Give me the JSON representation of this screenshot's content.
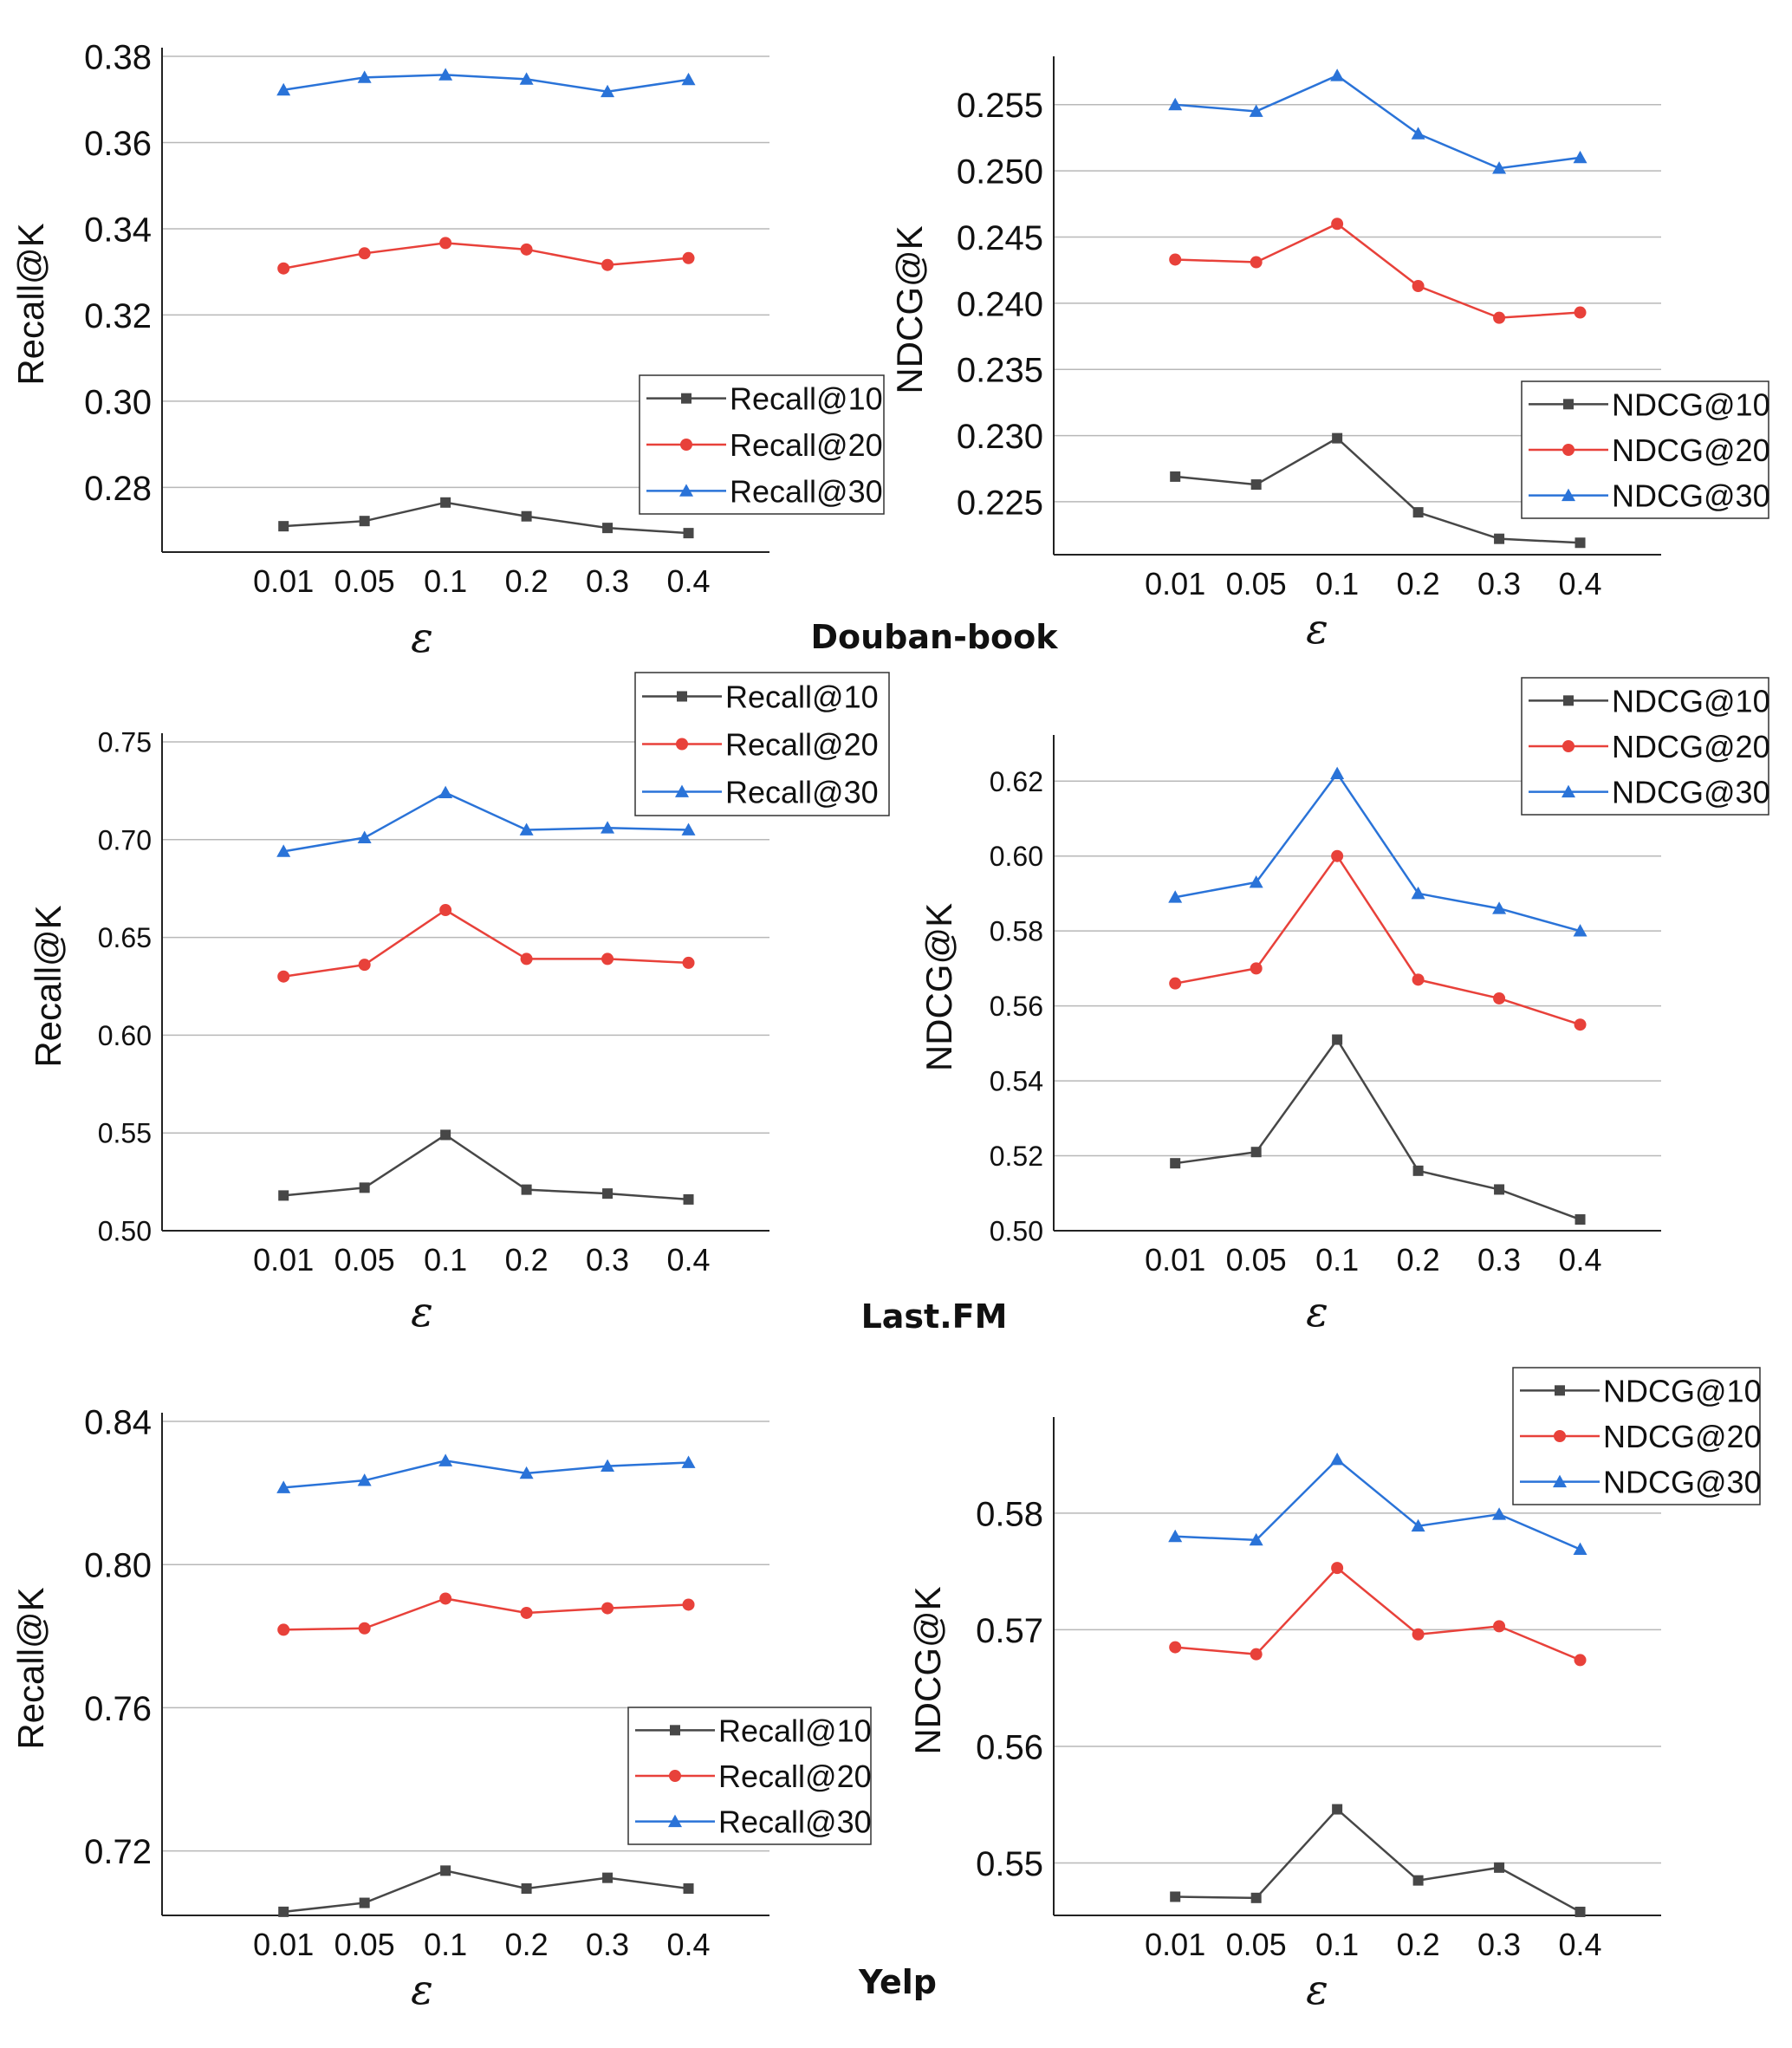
{
  "datasets": [
    "Douban-book",
    "Last.FM",
    "Yelp"
  ],
  "colors": {
    "series10": "#474747",
    "series20": "#e8413a",
    "series30": "#2a73d8",
    "grid": "#b8b8b8",
    "axis": "#222222"
  },
  "chart_data": [
    {
      "type": "line",
      "dataset": "Douban-book",
      "title": "",
      "xlabel": "ε",
      "ylabel": "Recall@K",
      "categories": [
        "0.01",
        "0.05",
        "0.1",
        "0.2",
        "0.3",
        "0.4"
      ],
      "ylim": [
        0.265,
        0.38
      ],
      "yticks": [
        0.28,
        0.3,
        0.32,
        0.34,
        0.36,
        0.38
      ],
      "ytick_labels": [
        "0.28",
        "0.30",
        "0.32",
        "0.34",
        "0.36",
        "0.38"
      ],
      "legend": "bottom-right",
      "series": [
        {
          "name": "Recall@10",
          "marker": "square",
          "values": [
            0.271,
            0.2722,
            0.2765,
            0.2733,
            0.2706,
            0.2694
          ]
        },
        {
          "name": "Recall@20",
          "marker": "circle",
          "values": [
            0.3308,
            0.3343,
            0.3367,
            0.3352,
            0.3316,
            0.3332
          ]
        },
        {
          "name": "Recall@30",
          "marker": "triangle",
          "values": [
            0.3722,
            0.3751,
            0.3757,
            0.3747,
            0.3718,
            0.3746
          ]
        }
      ]
    },
    {
      "type": "line",
      "dataset": "Douban-book",
      "title": "",
      "xlabel": "ε",
      "ylabel": "NDCG@K",
      "categories": [
        "0.01",
        "0.05",
        "0.1",
        "0.2",
        "0.3",
        "0.4"
      ],
      "ylim": [
        0.221,
        0.258
      ],
      "yticks": [
        0.225,
        0.23,
        0.235,
        0.24,
        0.245,
        0.25,
        0.255
      ],
      "ytick_labels": [
        "0.225",
        "0.230",
        "0.235",
        "0.240",
        "0.245",
        "0.250",
        "0.255"
      ],
      "legend": "bottom-right",
      "series": [
        {
          "name": "NDCG@10",
          "marker": "square",
          "values": [
            0.2269,
            0.2263,
            0.2298,
            0.2242,
            0.2222,
            0.2219
          ]
        },
        {
          "name": "NDCG@20",
          "marker": "circle",
          "values": [
            0.2433,
            0.2431,
            0.246,
            0.2413,
            0.2389,
            0.2393
          ]
        },
        {
          "name": "NDCG@30",
          "marker": "triangle",
          "values": [
            0.255,
            0.2545,
            0.2572,
            0.2528,
            0.2502,
            0.251
          ]
        }
      ]
    },
    {
      "type": "line",
      "dataset": "Last.FM",
      "title": "",
      "xlabel": "ε",
      "ylabel": "Recall@K",
      "categories": [
        "0.01",
        "0.05",
        "0.1",
        "0.2",
        "0.3",
        "0.4"
      ],
      "ylim": [
        0.5,
        0.75
      ],
      "yticks": [
        0.5,
        0.55,
        0.6,
        0.65,
        0.7,
        0.75
      ],
      "ytick_labels": [
        "0.50",
        "0.55",
        "0.60",
        "0.65",
        "0.70",
        "0.75"
      ],
      "legend": "top-right",
      "series": [
        {
          "name": "Recall@10",
          "marker": "square",
          "values": [
            0.518,
            0.522,
            0.549,
            0.521,
            0.519,
            0.516
          ]
        },
        {
          "name": "Recall@20",
          "marker": "circle",
          "values": [
            0.63,
            0.636,
            0.664,
            0.639,
            0.639,
            0.637
          ]
        },
        {
          "name": "Recall@30",
          "marker": "triangle",
          "values": [
            0.694,
            0.701,
            0.724,
            0.705,
            0.706,
            0.705
          ]
        }
      ]
    },
    {
      "type": "line",
      "dataset": "Last.FM",
      "title": "",
      "xlabel": "ε",
      "ylabel": "NDCG@K",
      "categories": [
        "0.01",
        "0.05",
        "0.1",
        "0.2",
        "0.3",
        "0.4"
      ],
      "ylim": [
        0.5,
        0.63
      ],
      "yticks": [
        0.5,
        0.52,
        0.54,
        0.56,
        0.58,
        0.6,
        0.62
      ],
      "ytick_labels": [
        "0.50",
        "0.52",
        "0.54",
        "0.56",
        "0.58",
        "0.60",
        "0.62"
      ],
      "legend": "top-right",
      "series": [
        {
          "name": "NDCG@10",
          "marker": "square",
          "values": [
            0.518,
            0.521,
            0.551,
            0.516,
            0.511,
            0.503
          ]
        },
        {
          "name": "NDCG@20",
          "marker": "circle",
          "values": [
            0.566,
            0.57,
            0.6,
            0.567,
            0.562,
            0.555
          ]
        },
        {
          "name": "NDCG@30",
          "marker": "triangle",
          "values": [
            0.589,
            0.593,
            0.622,
            0.59,
            0.586,
            0.58
          ]
        }
      ]
    },
    {
      "type": "line",
      "dataset": "Yelp",
      "title": "",
      "xlabel": "ε",
      "ylabel": "Recall@K",
      "categories": [
        "0.01",
        "0.05",
        "0.1",
        "0.2",
        "0.3",
        "0.4"
      ],
      "ylim": [
        0.702,
        0.84
      ],
      "yticks": [
        0.72,
        0.76,
        0.8,
        0.84
      ],
      "ytick_labels": [
        "0.72",
        "0.76",
        "0.80",
        "0.84"
      ],
      "legend": "bottom-right",
      "series": [
        {
          "name": "Recall@10",
          "marker": "square",
          "values": [
            0.703,
            0.7055,
            0.7145,
            0.7095,
            0.7125,
            0.7095
          ]
        },
        {
          "name": "Recall@20",
          "marker": "circle",
          "values": [
            0.7818,
            0.7822,
            0.7905,
            0.7865,
            0.7878,
            0.7888
          ]
        },
        {
          "name": "Recall@30",
          "marker": "triangle",
          "values": [
            0.8215,
            0.8235,
            0.829,
            0.8255,
            0.8275,
            0.8285
          ]
        }
      ]
    },
    {
      "type": "line",
      "dataset": "Yelp",
      "title": "",
      "xlabel": "ε",
      "ylabel": "NDCG@K",
      "categories": [
        "0.01",
        "0.05",
        "0.1",
        "0.2",
        "0.3",
        "0.4"
      ],
      "ylim": [
        0.5455,
        0.5875
      ],
      "yticks": [
        0.55,
        0.56,
        0.57,
        0.58
      ],
      "ytick_labels": [
        "0.55",
        "0.56",
        "0.57",
        "0.58"
      ],
      "legend": "top-right",
      "series": [
        {
          "name": "NDCG@10",
          "marker": "square",
          "values": [
            0.5471,
            0.547,
            0.5546,
            0.5485,
            0.5496,
            0.5458
          ]
        },
        {
          "name": "NDCG@20",
          "marker": "circle",
          "values": [
            0.5685,
            0.5679,
            0.5753,
            0.5696,
            0.5703,
            0.5674
          ]
        },
        {
          "name": "NDCG@30",
          "marker": "triangle",
          "values": [
            0.578,
            0.5777,
            0.5846,
            0.5789,
            0.5799,
            0.5769
          ]
        }
      ]
    }
  ]
}
